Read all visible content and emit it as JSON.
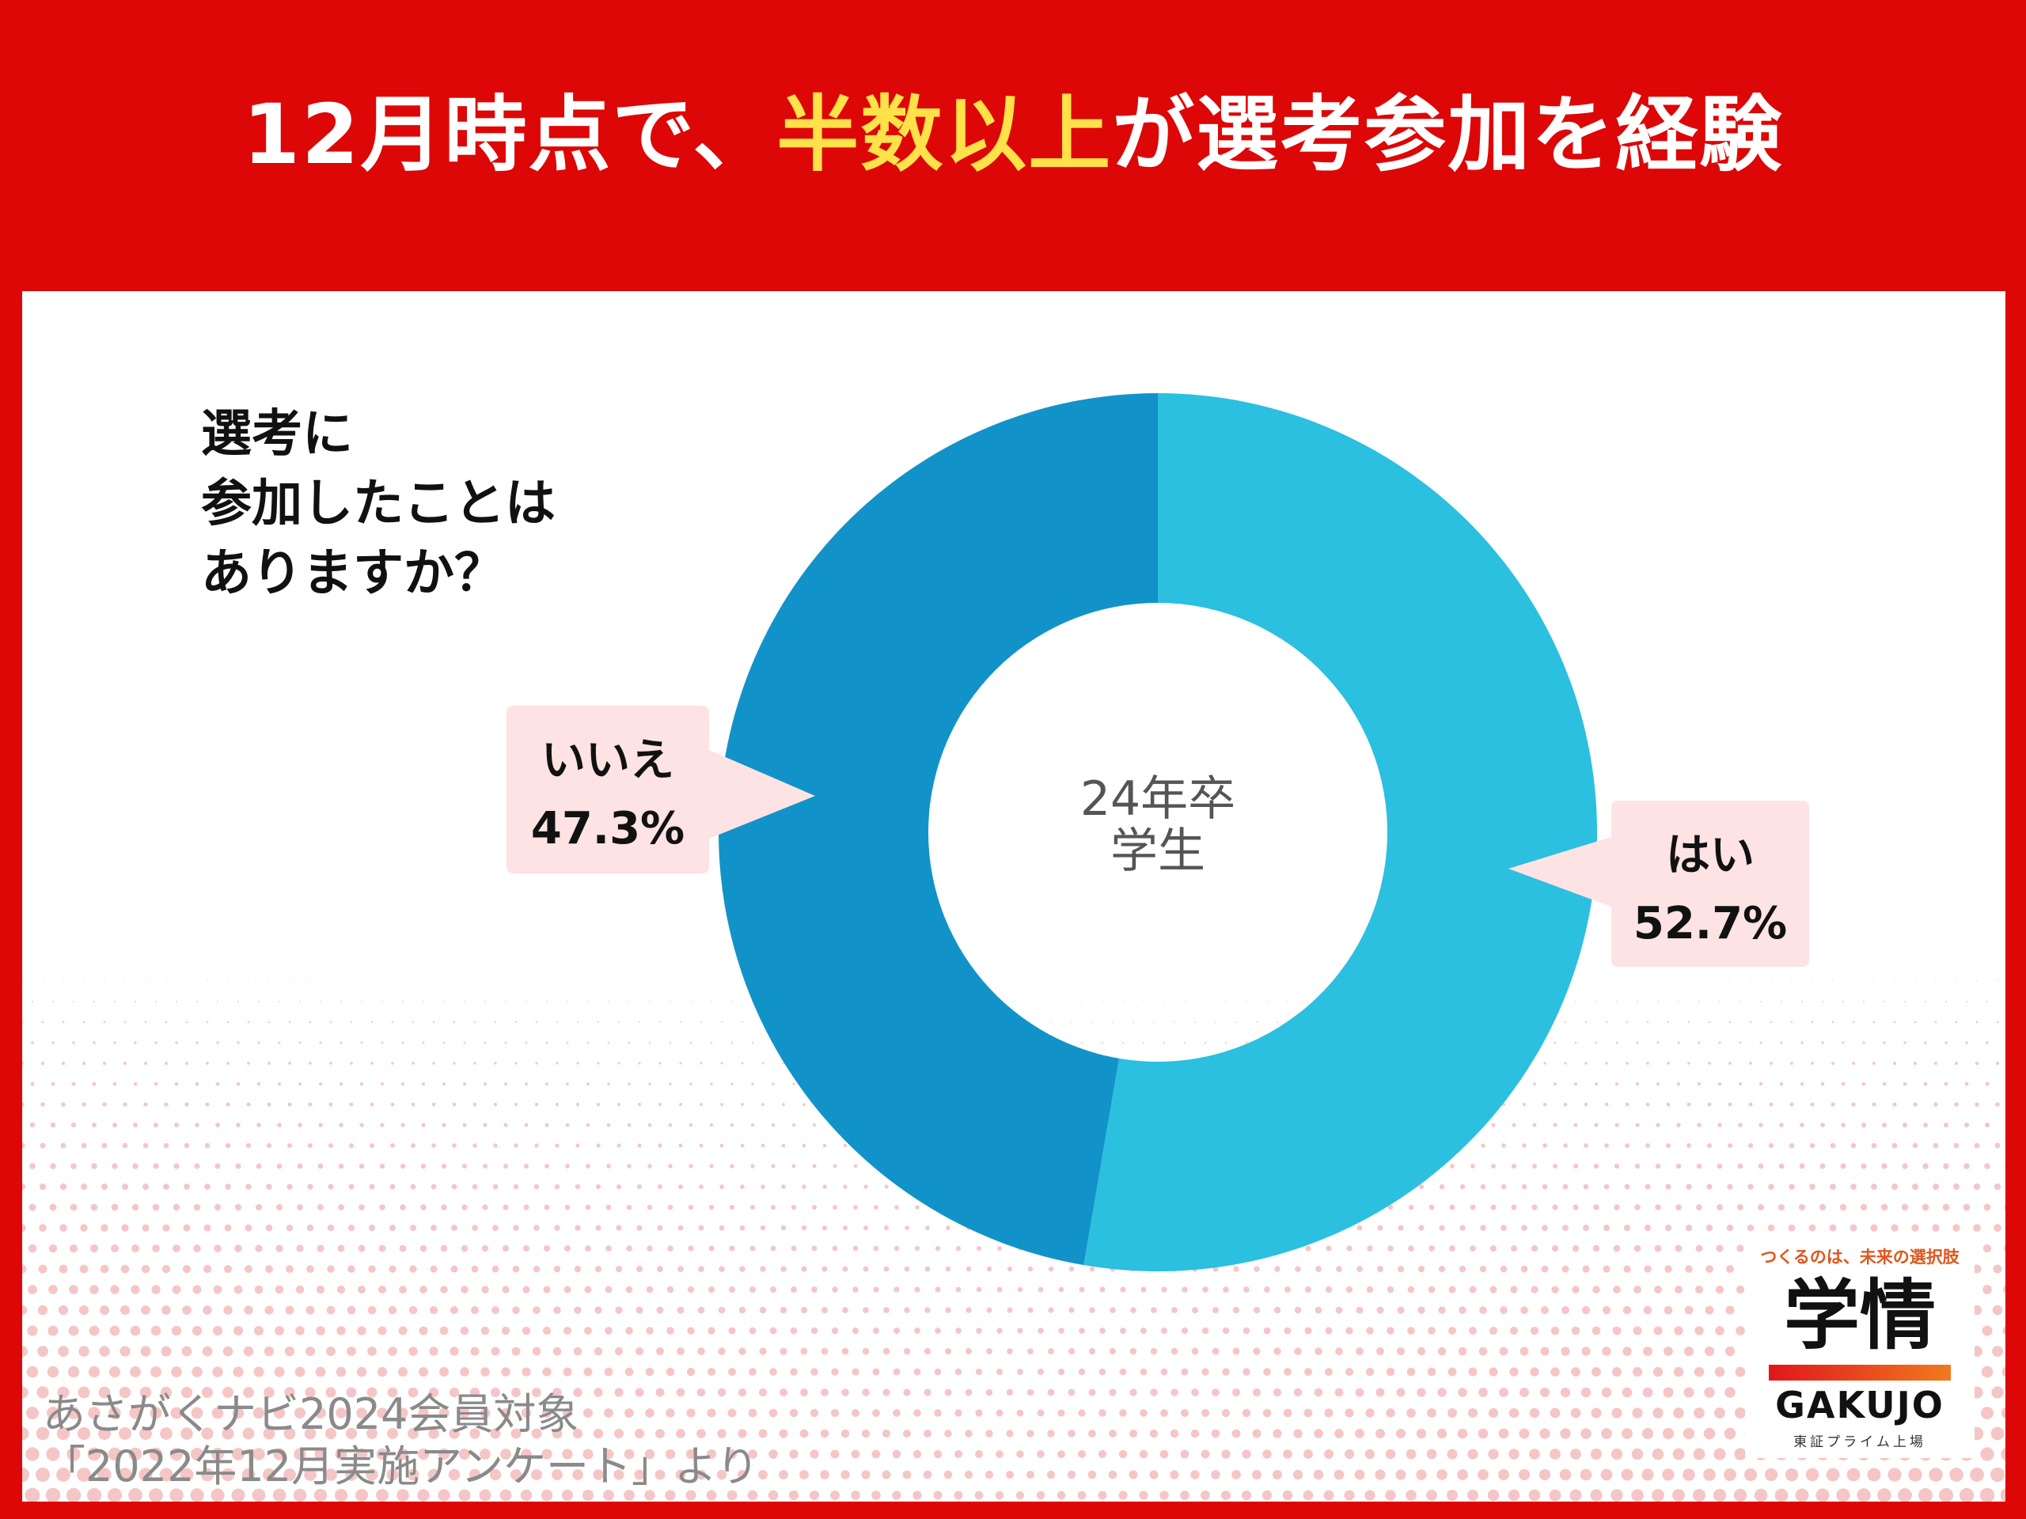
{
  "header": {
    "title_pre": "12月時点で、",
    "title_highlight": "半数以上",
    "title_post": "が選考参加を経験"
  },
  "question": {
    "line1": "選考に",
    "line2": "参加したことは",
    "line3": "ありますか？"
  },
  "chart_data": {
    "type": "pie",
    "donut": true,
    "center_label": [
      "24年卒",
      "学生"
    ],
    "categories": [
      "はい",
      "いいえ"
    ],
    "values": [
      52.7,
      47.3
    ],
    "value_labels": [
      "52.7%",
      "47.3%"
    ],
    "colors": [
      "#2bbfe0",
      "#1193c9"
    ],
    "start": "top",
    "direction": "clockwise"
  },
  "source": {
    "line1": "あさがくナビ2024会員対象",
    "line2": "「2022年12月実施アンケート」より"
  },
  "logo": {
    "tagline": "つくるのは、未来の選択肢",
    "mark": "学情",
    "brand": "GAKUJO",
    "sub": "東証プライム上場"
  },
  "colors": {
    "frame": "#dd0707",
    "highlight": "#ffe14a",
    "callout_bg": "#fde3e3"
  }
}
